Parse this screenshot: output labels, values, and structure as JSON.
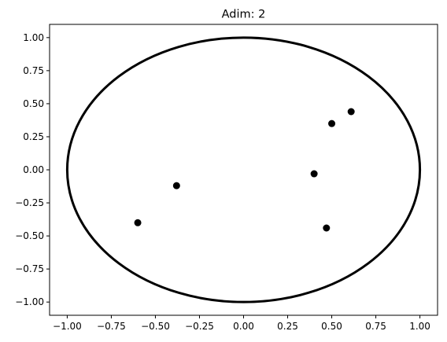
{
  "chart_data": {
    "type": "scatter",
    "title": "Adim: 2",
    "xlabel": "",
    "ylabel": "",
    "xlim": [
      -1.1,
      1.1
    ],
    "ylim": [
      -1.1,
      1.1
    ],
    "grid": false,
    "x_ticks": [
      -1.0,
      -0.75,
      -0.5,
      -0.25,
      0.0,
      0.25,
      0.5,
      0.75,
      1.0
    ],
    "y_ticks": [
      -1.0,
      -0.75,
      -0.5,
      -0.25,
      0.0,
      0.25,
      0.5,
      0.75,
      1.0
    ],
    "x_tick_labels": [
      "−1.00",
      "−0.75",
      "−0.50",
      "−0.25",
      "0.00",
      "0.25",
      "0.50",
      "0.75",
      "1.00"
    ],
    "y_tick_labels": [
      "−1.00",
      "−0.75",
      "−0.50",
      "−0.25",
      "0.00",
      "0.25",
      "0.50",
      "0.75",
      "1.00"
    ],
    "circle": {
      "center": [
        0,
        0
      ],
      "radius": 1.0,
      "color": "#000000"
    },
    "points": [
      {
        "x": 0.61,
        "y": 0.44
      },
      {
        "x": 0.5,
        "y": 0.35
      },
      {
        "x": 0.4,
        "y": -0.03
      },
      {
        "x": 0.47,
        "y": -0.44
      },
      {
        "x": -0.38,
        "y": -0.12
      },
      {
        "x": -0.6,
        "y": -0.4
      }
    ],
    "point_color": "#000000"
  }
}
